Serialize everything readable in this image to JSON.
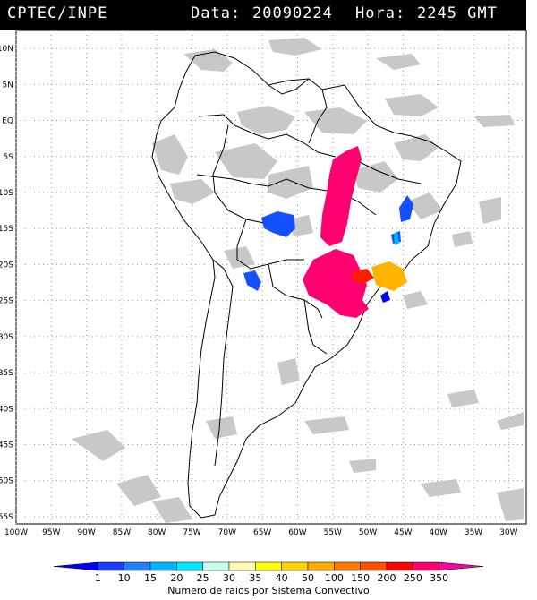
{
  "header": {
    "source": "CPTEC/INPE",
    "date_label": "Data:",
    "date": "20090224",
    "hour_label": "Hora:",
    "hour": "2245 GMT"
  },
  "map": {
    "lat_labels": [
      "10N",
      "5N",
      "EQ",
      "5S",
      "10S",
      "15S",
      "20S",
      "25S",
      "30S",
      "35S",
      "40S",
      "45S",
      "50S",
      "55S"
    ],
    "lon_labels": [
      "100W",
      "95W",
      "90W",
      "85W",
      "80W",
      "75W",
      "70W",
      "65W",
      "60W",
      "55W",
      "50W",
      "45W",
      "40W",
      "35W",
      "30W"
    ],
    "extent": {
      "lon_min": -100,
      "lon_max": -27.5,
      "lat_min": -56,
      "lat_max": 12.5
    },
    "colors": {
      "land_outline": "#000000",
      "cloud": "#c8c8c8",
      "grid": "#9a9a9a"
    }
  },
  "lightning_cells": [
    {
      "region": "central-brazil",
      "color": "#ff0070",
      "lon": -53,
      "lat": -13.5
    },
    {
      "region": "parana",
      "color": "#ff0070",
      "lon": -53.5,
      "lat": -23
    },
    {
      "region": "bolivia",
      "color": "#1450ff",
      "lon": -62,
      "lat": -14.5
    },
    {
      "region": "minas",
      "color": "#ffb400",
      "lon": -44,
      "lat": -21.5
    },
    {
      "region": "sao-paulo",
      "color": "#ff1e00",
      "lon": -48.5,
      "lat": -21.5
    },
    {
      "region": "bahia",
      "color": "#1450ff",
      "lon": -42.5,
      "lat": -11.5
    },
    {
      "region": "paraguay-west",
      "color": "#1450ff",
      "lon": -69,
      "lat": -22.5
    }
  ],
  "legend": {
    "caption": "Numero de raios por Sistema Convectivo",
    "ticks": [
      "1",
      "10",
      "15",
      "20",
      "25",
      "30",
      "35",
      "40",
      "50",
      "100",
      "150",
      "200",
      "250",
      "350"
    ],
    "colors": [
      "#0000ff",
      "#1c3cff",
      "#1e82ff",
      "#00b4ff",
      "#00e6ff",
      "#c8fff0",
      "#fffab4",
      "#ffff00",
      "#ffd200",
      "#ffaa00",
      "#ff7800",
      "#ff5000",
      "#ff0000",
      "#ff006e",
      "#ff00a0"
    ]
  }
}
